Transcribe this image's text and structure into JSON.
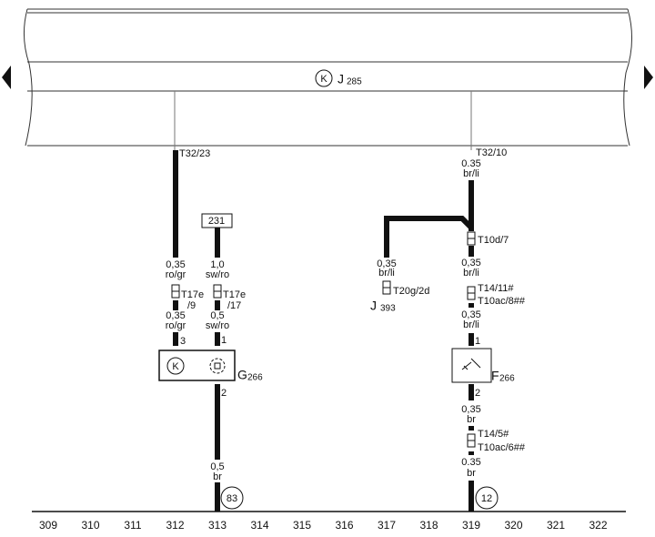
{
  "control_unit": {
    "symbol": "K",
    "name": "J",
    "index": "285"
  },
  "left_wire": {
    "terminal": "T32/23",
    "size_1": "0,35",
    "color_1": "ro/gr",
    "connector": "T17e",
    "pin": "/9",
    "size_2": "0,35",
    "color_2": "ro/gr",
    "pin_in": "3"
  },
  "sensor": {
    "symbol": "K",
    "name": "G",
    "index": "266"
  },
  "second_wire": {
    "source": "231",
    "size_1": "1,0",
    "color_1": "sw/ro",
    "connector": "T17e",
    "pin": "/17",
    "size_2": "0,5",
    "color_2": "sw/ro",
    "pin_in": "1",
    "pin_out": "2",
    "size_3": "0,5",
    "color_3": "br",
    "ground": "83"
  },
  "right_wire": {
    "terminal": "T32/10",
    "size_1": "0.35",
    "color_1": "br/li",
    "connector_1": "T10d/7",
    "size_2": "0,35",
    "color_2": "br/li",
    "connector_2a": "T14/11#",
    "connector_2b": "T10ac/8##",
    "size_3": "0,35",
    "color_3": "br/li",
    "pin_in": "1",
    "pin_out": "2",
    "size_4": "0,35",
    "color_4": "br",
    "connector_3a": "T14/5#",
    "connector_3b": "T10ac/6##",
    "size_5": "0.35",
    "color_5": "br",
    "ground": "12"
  },
  "branch": {
    "size": "0,35",
    "color": "br/li",
    "connector": "T20g/2d",
    "name": "J",
    "index": "393"
  },
  "switch": {
    "name": "F",
    "index": "266"
  },
  "scale": [
    309,
    310,
    311,
    312,
    313,
    314,
    315,
    316,
    317,
    318,
    319,
    320,
    321,
    322
  ]
}
